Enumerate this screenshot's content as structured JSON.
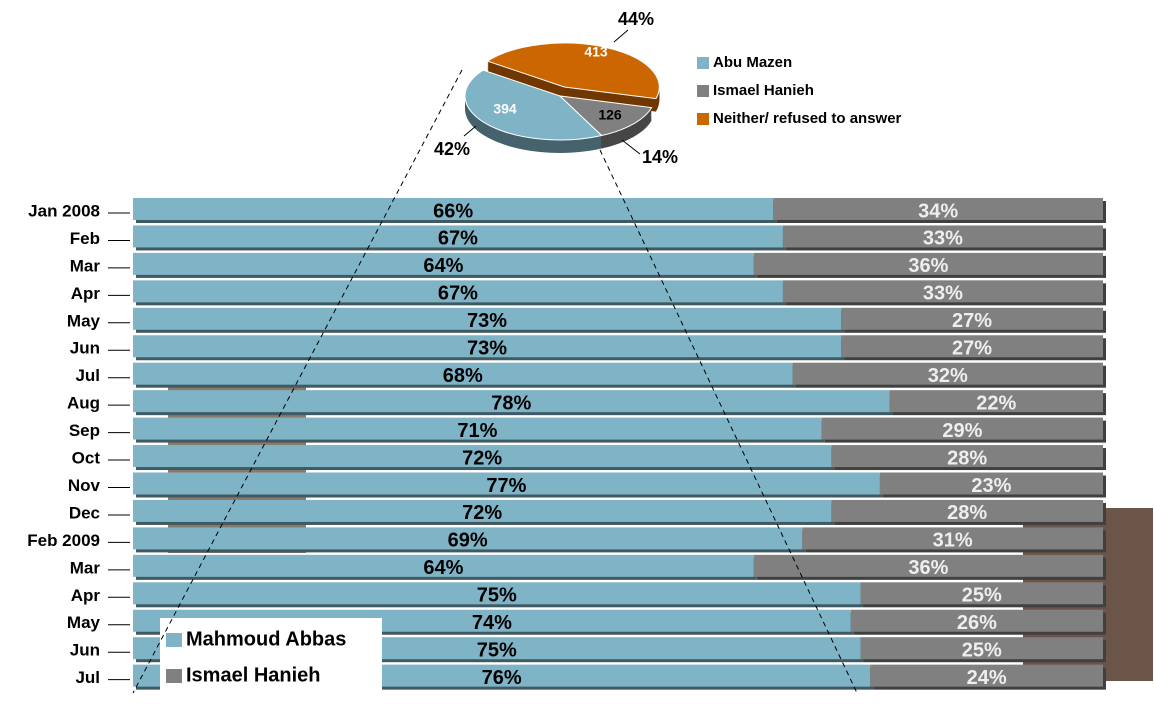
{
  "chart_data": [
    {
      "type": "pie",
      "categories": [
        "Abu Mazen",
        "Ismael Hanieh",
        "Neither/ refused to answer"
      ],
      "values": [
        394,
        126,
        413
      ],
      "shares": [
        42,
        14,
        44
      ],
      "share_labels": [
        "42%",
        "14%",
        "44%"
      ],
      "colors": [
        "#7fb3c6",
        "#808080",
        "#cc6600"
      ],
      "legend": "right"
    },
    {
      "type": "stacked_bar_horizontal",
      "categories": [
        "Jan 2008",
        "Feb",
        "Mar",
        "Apr",
        "May",
        "Jun",
        "Jul",
        "Aug",
        "Sep",
        "Oct",
        "Nov",
        "Dec",
        "Feb 2009",
        "Mar",
        "Apr",
        "May",
        "Jun",
        "Jul"
      ],
      "series": [
        {
          "name": "Mahmoud Abbas",
          "color": "#7fb3c6",
          "values": [
            66,
            67,
            64,
            67,
            73,
            73,
            68,
            78,
            71,
            72,
            77,
            72,
            69,
            64,
            75,
            74,
            75,
            76
          ],
          "value_labels": [
            "66%",
            "67%",
            "64%",
            "67%",
            "73%",
            "73%",
            "68%",
            "78%",
            "71%",
            "72%",
            "77%",
            "72%",
            "69%",
            "64%",
            "75%",
            "74%",
            "75%",
            "76%"
          ]
        },
        {
          "name": "Ismael Hanieh",
          "color": "#808080",
          "values": [
            34,
            33,
            36,
            33,
            27,
            27,
            32,
            22,
            29,
            28,
            23,
            28,
            31,
            36,
            25,
            26,
            25,
            24
          ],
          "value_labels": [
            "34%",
            "33%",
            "36%",
            "33%",
            "27%",
            "27%",
            "32%",
            "22%",
            "29%",
            "28%",
            "23%",
            "28%",
            "31%",
            "36%",
            "25%",
            "26%",
            "25%",
            "24%"
          ]
        }
      ],
      "legend": "bottom-left"
    }
  ]
}
